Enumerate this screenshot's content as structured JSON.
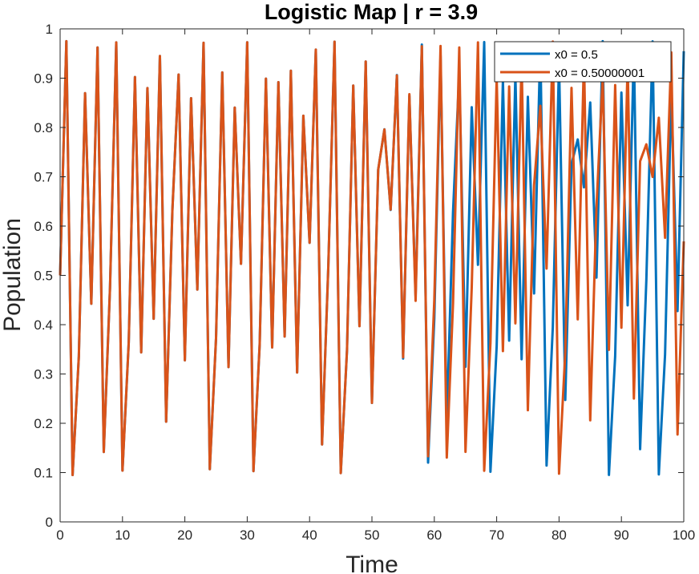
{
  "chart_data": {
    "type": "line",
    "title": "Logistic Map | r = 3.9",
    "xlabel": "Time",
    "ylabel": "Population",
    "xlim": [
      0,
      100
    ],
    "ylim": [
      0,
      1
    ],
    "xticks": [
      "0",
      "10",
      "20",
      "30",
      "40",
      "50",
      "60",
      "70",
      "80",
      "90",
      "100"
    ],
    "yticks": [
      "0",
      "0.1",
      "0.2",
      "0.3",
      "0.4",
      "0.5",
      "0.6",
      "0.7",
      "0.8",
      "0.9",
      "1"
    ],
    "grid": false,
    "legend_position": "top-right",
    "r": 3.9,
    "n_steps": 100,
    "series": [
      {
        "name": "x0 = 0.5",
        "x0": 0.5,
        "color": "#0072BD"
      },
      {
        "name": "x0 = 0.50000001",
        "x0": 0.50000001,
        "color": "#D95319"
      }
    ]
  }
}
